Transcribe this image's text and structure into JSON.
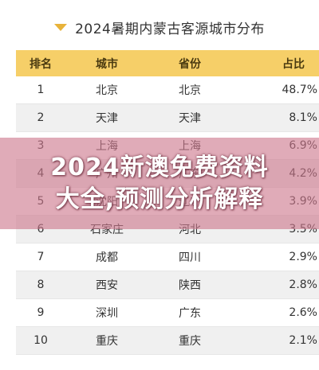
{
  "header": {
    "title": "2024暑期内蒙古客源城市分布",
    "accent_color": "#e8b33a"
  },
  "table": {
    "columns": [
      "排名",
      "城市",
      "省份",
      "占比"
    ],
    "rows": [
      {
        "rank": "1",
        "city": "北京",
        "province": "北京",
        "share": "48.7%"
      },
      {
        "rank": "2",
        "city": "天津",
        "province": "天津",
        "share": "8.1%"
      },
      {
        "rank": "3",
        "city": "上海",
        "province": "上海",
        "share": "6.9%"
      },
      {
        "rank": "4",
        "city": "广州",
        "province": "广东",
        "share": "4.2%"
      },
      {
        "rank": "5",
        "city": "沈阳",
        "province": "辽宁",
        "share": "3.9%"
      },
      {
        "rank": "6",
        "city": "石家庄",
        "province": "河北",
        "share": "3.5%"
      },
      {
        "rank": "7",
        "city": "成都",
        "province": "四川",
        "share": "2.9%"
      },
      {
        "rank": "8",
        "city": "西安",
        "province": "陕西",
        "share": "2.8%"
      },
      {
        "rank": "9",
        "city": "深圳",
        "province": "广东",
        "share": "2.6%"
      },
      {
        "rank": "10",
        "city": "重庆",
        "province": "重庆",
        "share": "2.1%"
      }
    ],
    "header_color": "#f6cf68"
  },
  "watermark": {
    "line1": "2024新澳免费资料",
    "line2": "大全,预测分析解释"
  }
}
